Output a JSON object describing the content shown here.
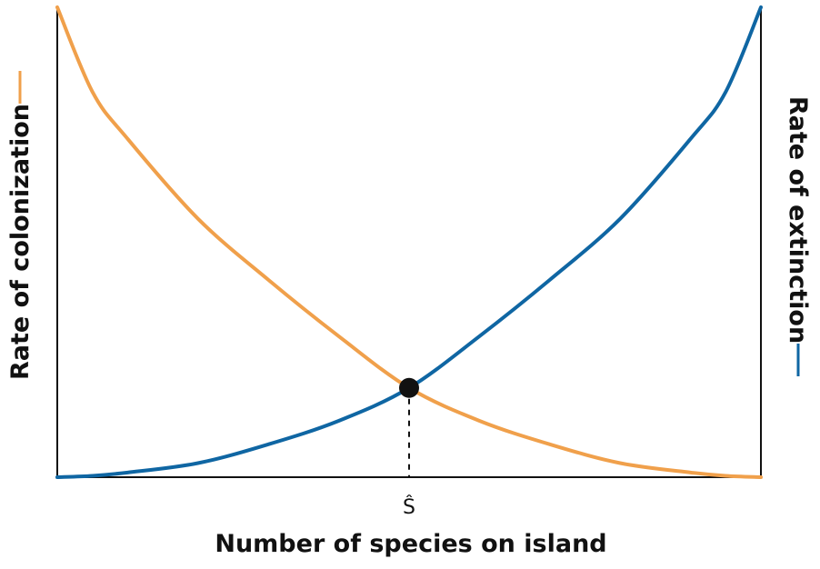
{
  "chart_data": {
    "type": "line",
    "title": "",
    "xlabel": "Number of species on island",
    "ylabel_left": "Rate of colonization",
    "ylabel_right": "Rate of extinction",
    "x_tick_labels": [
      "Ŝ"
    ],
    "xlim": [
      0,
      1
    ],
    "ylim": [
      0,
      1
    ],
    "equilibrium": {
      "label": "Ŝ",
      "x": 0.5,
      "y": 0.19
    },
    "series": [
      {
        "name": "Rate of colonization",
        "axis": "left",
        "color": "#f0a04b",
        "x": [
          0,
          0.05,
          0.1,
          0.2,
          0.3,
          0.4,
          0.5,
          0.6,
          0.7,
          0.8,
          0.9,
          0.95,
          1
        ],
        "y": [
          1.0,
          0.82,
          0.72,
          0.55,
          0.42,
          0.3,
          0.19,
          0.12,
          0.07,
          0.03,
          0.01,
          0.003,
          0.0
        ]
      },
      {
        "name": "Rate of extinction",
        "axis": "right",
        "color": "#0f66a3",
        "x": [
          0,
          0.05,
          0.1,
          0.2,
          0.3,
          0.4,
          0.5,
          0.6,
          0.7,
          0.8,
          0.9,
          0.95,
          1
        ],
        "y": [
          0.0,
          0.003,
          0.01,
          0.03,
          0.07,
          0.12,
          0.19,
          0.3,
          0.42,
          0.55,
          0.72,
          0.82,
          1.0
        ]
      }
    ],
    "grid": false,
    "legend": "none"
  }
}
